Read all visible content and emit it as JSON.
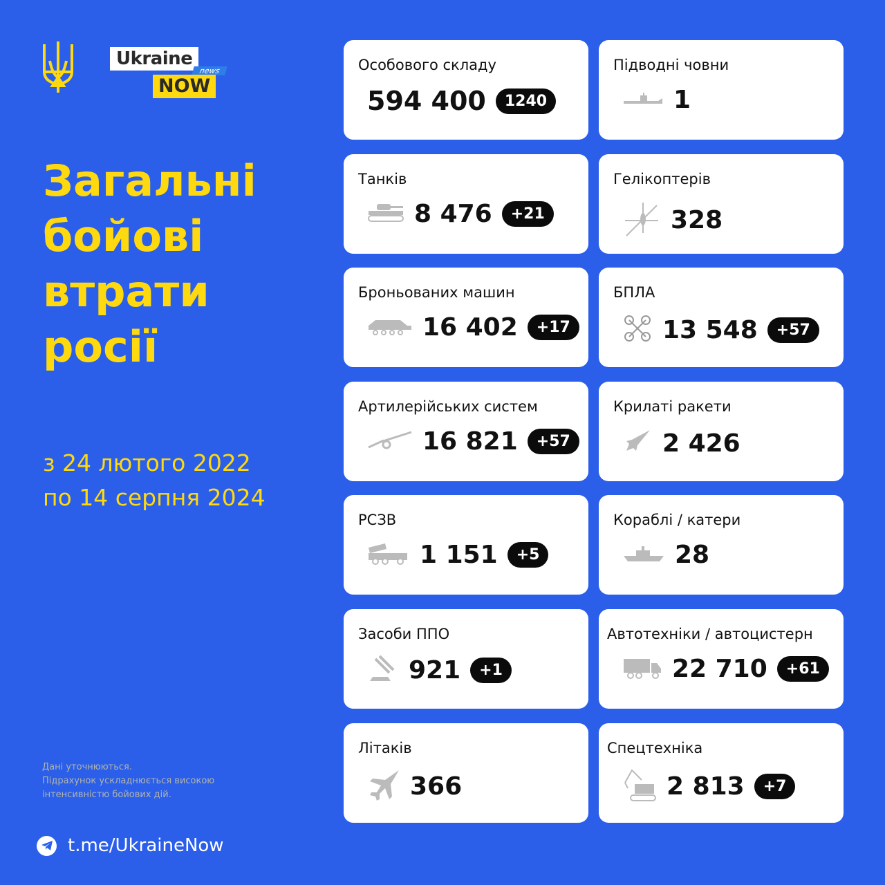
{
  "brand": {
    "logo_top": "Ukraine",
    "logo_tag": "news",
    "logo_bottom": "NOW"
  },
  "title": [
    "Загальні",
    "бойові",
    "втрати",
    "росії"
  ],
  "period": [
    "з 24 лютого 2022",
    "по 14 серпня 2024"
  ],
  "note": [
    "Дані уточнюються.",
    "Підрахунок ускладнюється високою",
    "інтенсивністю бойових дій."
  ],
  "telegram": {
    "icon": "telegram-icon",
    "link": "t.me/UkraineNow"
  },
  "colors": {
    "background": "#2b5fea",
    "accent": "#ffd90f",
    "badge": "#0b0b0b"
  },
  "cards": [
    {
      "label": "Особового складу",
      "value": "594 400",
      "delta": "1240",
      "icon": ""
    },
    {
      "label": "Підводні човни",
      "value": "1",
      "delta": "",
      "icon": "submarine-icon"
    },
    {
      "label": "Танків",
      "value": "8 476",
      "delta": "+21",
      "icon": "tank-icon"
    },
    {
      "label": "Гелікоптерів",
      "value": "328",
      "delta": "",
      "icon": "helicopter-icon"
    },
    {
      "label": "Броньованих машин",
      "value": "16 402",
      "delta": "+17",
      "icon": "apc-icon"
    },
    {
      "label": "БПЛА",
      "value": "13 548",
      "delta": "+57",
      "icon": "drone-icon"
    },
    {
      "label": "Артилерійських систем",
      "value": "16 821",
      "delta": "+57",
      "icon": "artillery-icon"
    },
    {
      "label": "Крилаті ракети",
      "value": "2 426",
      "delta": "",
      "icon": "missile-icon"
    },
    {
      "label": "РСЗВ",
      "value": "1 151",
      "delta": "+5",
      "icon": "mlrs-icon"
    },
    {
      "label": "Кораблі / катери",
      "value": "28",
      "delta": "",
      "icon": "ship-icon"
    },
    {
      "label": "Засоби ППО",
      "value": "921",
      "delta": "+1",
      "icon": "air-defense-icon"
    },
    {
      "label": "Автотехніки / автоцистерн",
      "value": "22 710",
      "delta": "+61",
      "icon": "truck-icon"
    },
    {
      "label": "Літаків",
      "value": "366",
      "delta": "",
      "icon": "jet-icon"
    },
    {
      "label": "Спецтехніка",
      "value": "2 813",
      "delta": "+7",
      "icon": "excavator-icon"
    }
  ]
}
